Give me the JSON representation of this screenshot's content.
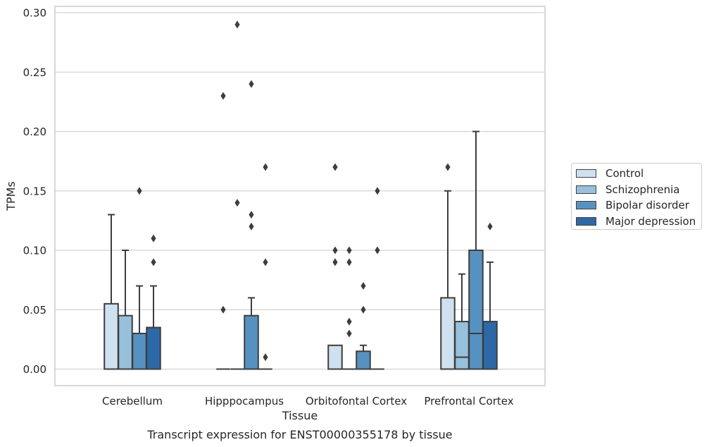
{
  "chart_data": {
    "type": "box",
    "title": "Transcript expression for ENST00000355178 by tissue",
    "xlabel": "Tissue",
    "ylabel": "TPMs",
    "ylim": [
      -0.014,
      0.305
    ],
    "yticks": [
      "0.00",
      "0.05",
      "0.10",
      "0.15",
      "0.20",
      "0.25",
      "0.30"
    ],
    "grid": true,
    "legend_position": "right",
    "categories": [
      "Cerebellum",
      "Hipppocampus",
      "Orbitofontal Cortex",
      "Prefrontal Cortex"
    ],
    "series": [
      {
        "name": "Control",
        "color": "#cfe0ef",
        "boxes": [
          {
            "q1": 0,
            "median": 0,
            "q3": 0.055,
            "whisker_low": 0,
            "whisker_high": 0.13,
            "outliers": []
          },
          {
            "q1": 0,
            "median": 0,
            "q3": 0,
            "whisker_low": 0,
            "whisker_high": 0,
            "outliers": [
              0.05,
              0.23
            ]
          },
          {
            "q1": 0,
            "median": 0,
            "q3": 0.02,
            "whisker_low": 0,
            "whisker_high": 0.02,
            "outliers": [
              0.09,
              0.1,
              0.17
            ]
          },
          {
            "q1": 0,
            "median": 0,
            "q3": 0.06,
            "whisker_low": 0,
            "whisker_high": 0.15,
            "outliers": [
              0.17
            ]
          }
        ]
      },
      {
        "name": "Schizophrenia",
        "color": "#97c0db",
        "boxes": [
          {
            "q1": 0,
            "median": 0,
            "q3": 0.045,
            "whisker_low": 0,
            "whisker_high": 0.1,
            "outliers": []
          },
          {
            "q1": 0,
            "median": 0,
            "q3": 0,
            "whisker_low": 0,
            "whisker_high": 0,
            "outliers": [
              0.14,
              0.29
            ]
          },
          {
            "q1": 0,
            "median": 0,
            "q3": 0,
            "whisker_low": 0,
            "whisker_high": 0,
            "outliers": [
              0.03,
              0.04,
              0.09,
              0.1
            ]
          },
          {
            "q1": 0,
            "median": 0.01,
            "q3": 0.04,
            "whisker_low": 0,
            "whisker_high": 0.08,
            "outliers": []
          }
        ]
      },
      {
        "name": "Bipolar disorder",
        "color": "#5692c1",
        "boxes": [
          {
            "q1": 0,
            "median": 0,
            "q3": 0.03,
            "whisker_low": 0,
            "whisker_high": 0.07,
            "outliers": [
              0.15
            ]
          },
          {
            "q1": 0,
            "median": 0,
            "q3": 0.045,
            "whisker_low": 0,
            "whisker_high": 0.06,
            "outliers": [
              0.12,
              0.13,
              0.24
            ]
          },
          {
            "q1": 0,
            "median": 0,
            "q3": 0.015,
            "whisker_low": 0,
            "whisker_high": 0.02,
            "outliers": [
              0.05,
              0.07
            ]
          },
          {
            "q1": 0,
            "median": 0.03,
            "q3": 0.1,
            "whisker_low": 0,
            "whisker_high": 0.2,
            "outliers": []
          }
        ]
      },
      {
        "name": "Major depression",
        "color": "#2d69a8",
        "boxes": [
          {
            "q1": 0,
            "median": 0,
            "q3": 0.035,
            "whisker_low": 0,
            "whisker_high": 0.07,
            "outliers": [
              0.09,
              0.11
            ]
          },
          {
            "q1": 0,
            "median": 0,
            "q3": 0,
            "whisker_low": 0,
            "whisker_high": 0,
            "outliers": [
              0.01,
              0.09,
              0.17
            ]
          },
          {
            "q1": 0,
            "median": 0,
            "q3": 0,
            "whisker_low": 0,
            "whisker_high": 0,
            "outliers": [
              0.1,
              0.15
            ]
          },
          {
            "q1": 0,
            "median": 0,
            "q3": 0.04,
            "whisker_low": 0,
            "whisker_high": 0.09,
            "outliers": [
              0.12
            ]
          }
        ]
      }
    ]
  }
}
